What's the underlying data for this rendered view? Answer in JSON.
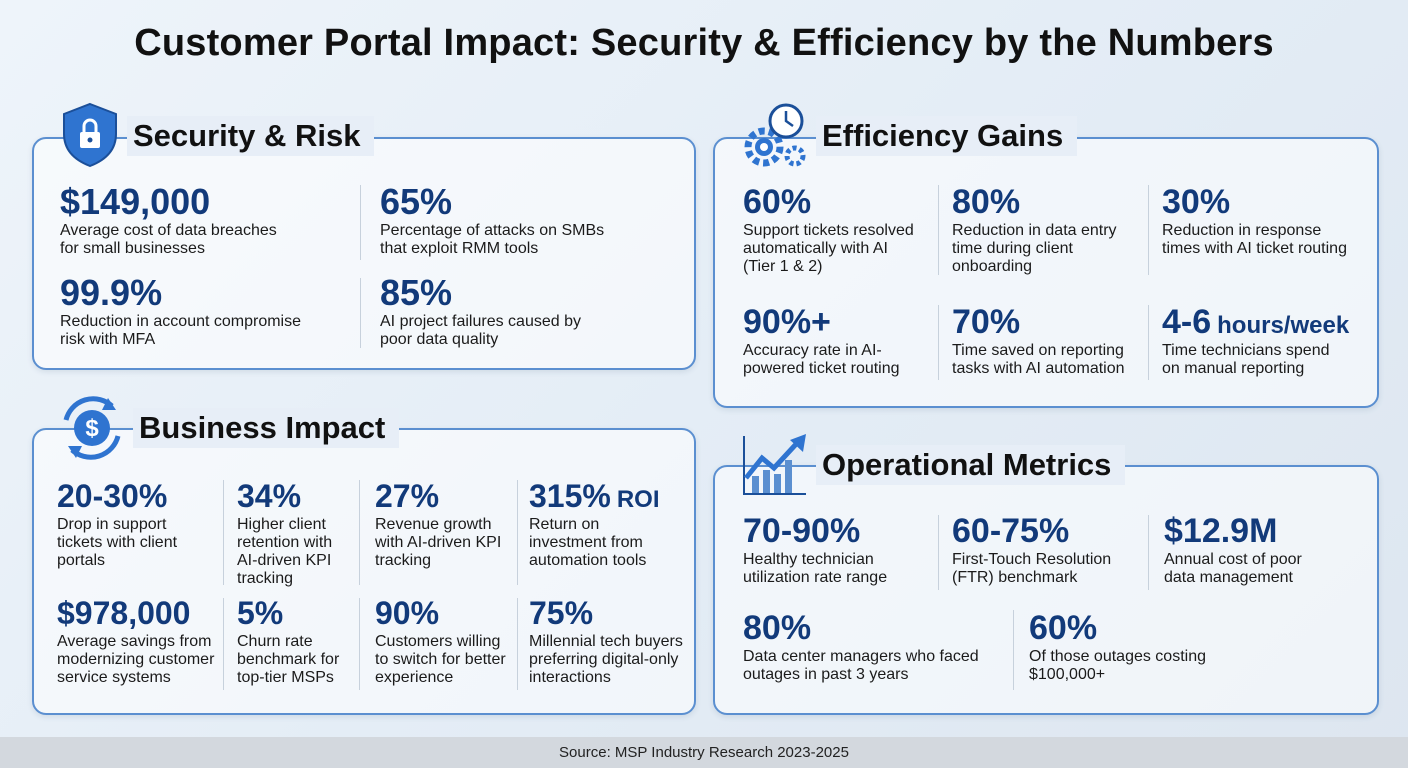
{
  "title": "Customer Portal Impact: Security & Efficiency by the Numbers",
  "sections": [
    {
      "heading": "Security & Risk",
      "stats": [
        {
          "value": "$149,000",
          "description": [
            "Average cost of data breaches",
            "for small businesses"
          ]
        },
        {
          "value": "65%",
          "description": [
            "Percentage of attacks on SMBs",
            "that exploit RMM tools"
          ]
        },
        {
          "value": "99.9%",
          "description": [
            "Reduction in account compromise",
            "risk with MFA"
          ]
        },
        {
          "value": "85%",
          "description": [
            "AI project failures caused by",
            "poor data quality"
          ]
        }
      ]
    },
    {
      "heading": "Efficiency Gains",
      "stats": [
        {
          "value": "60%",
          "description": [
            "Support tickets resolved",
            "automatically with AI",
            "(Tier 1 & 2)"
          ]
        },
        {
          "value": "80%",
          "description": [
            "Reduction in data entry",
            "time during client",
            "onboarding"
          ]
        },
        {
          "value": "30%",
          "description": [
            "Reduction in response",
            "times with AI ticket routing"
          ]
        },
        {
          "value": "90%+",
          "description": [
            "Accuracy rate in AI-",
            "powered ticket routing"
          ]
        },
        {
          "value": "70%",
          "description": [
            "Time saved on reporting",
            "tasks with AI automation"
          ]
        },
        {
          "value": "4-6",
          "unit": "hours/week",
          "description": [
            "Time technicians spend",
            "on manual reporting"
          ]
        }
      ]
    },
    {
      "heading": "Business Impact",
      "stats": [
        {
          "value": "20-30%",
          "description": [
            "Drop in support",
            "tickets with client",
            "portals"
          ]
        },
        {
          "value": "34%",
          "description": [
            "Higher client",
            "retention with",
            "AI-driven KPI",
            "tracking"
          ]
        },
        {
          "value": "27%",
          "description": [
            "Revenue growth",
            "with AI-driven KPI",
            "tracking"
          ]
        },
        {
          "value": "315%",
          "unit": "ROI",
          "description": [
            "Return on",
            "investment from",
            "automation tools"
          ]
        },
        {
          "value": "$978,000",
          "description": [
            "Average savings from",
            "modernizing customer",
            "service systems"
          ]
        },
        {
          "value": "5%",
          "description": [
            "Churn rate",
            "benchmark for",
            "top-tier MSPs"
          ]
        },
        {
          "value": "90%",
          "description": [
            "Customers willing",
            "to switch for better",
            "experience"
          ]
        },
        {
          "value": "75%",
          "description": [
            "Millennial tech buyers",
            "preferring digital-only",
            "interactions"
          ]
        }
      ]
    },
    {
      "heading": "Operational Metrics",
      "stats": [
        {
          "value": "70-90%",
          "description": [
            "Healthy technician",
            "utilization rate range"
          ]
        },
        {
          "value": "60-75%",
          "description": [
            "First-Touch Resolution",
            "(FTR) benchmark"
          ]
        },
        {
          "value": "$12.9M",
          "description": [
            "Annual cost of poor",
            "data management"
          ]
        },
        {
          "value": "80%",
          "description": [
            "Data center managers who faced",
            "outages in past 3 years"
          ]
        },
        {
          "value": "60%",
          "description": [
            "Of those outages costing",
            "$100,000+"
          ]
        }
      ]
    }
  ],
  "source": "Source: MSP Industry Research 2023-2025"
}
